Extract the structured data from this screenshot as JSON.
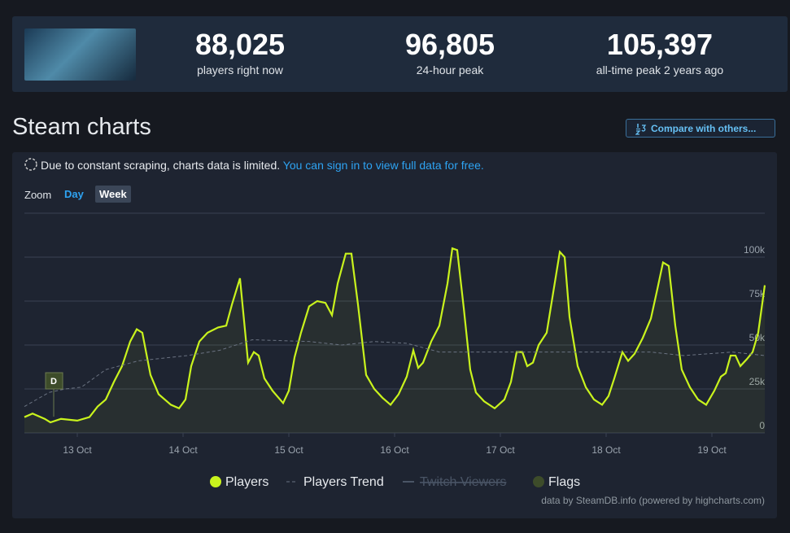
{
  "stats": [
    {
      "value": "88,025",
      "label": "players right now"
    },
    {
      "value": "96,805",
      "label": "24-hour peak"
    },
    {
      "value": "105,397",
      "label": "all-time peak 2 years ago"
    }
  ],
  "title": "Steam charts",
  "compare_button": "Compare with others...",
  "notice": {
    "text": "Due to constant scraping, charts data is limited.",
    "link": "You can sign in to view full data for free."
  },
  "zoom": {
    "label": "Zoom",
    "options": [
      "Day",
      "Week"
    ],
    "active": "Week"
  },
  "chart_data": {
    "type": "line",
    "ylim": [
      0,
      125000
    ],
    "yticks": [
      0,
      {
        "value": 25000,
        "label": "25k"
      },
      {
        "value": 50000,
        "label": "50k"
      },
      {
        "value": 75000,
        "label": "75k"
      },
      {
        "value": 100000,
        "label": "100k"
      }
    ],
    "xlim": [
      12.5,
      19.5
    ],
    "xticks": [
      {
        "value": 13,
        "label": "13 Oct"
      },
      {
        "value": 14,
        "label": "14 Oct"
      },
      {
        "value": 15,
        "label": "15 Oct"
      },
      {
        "value": 16,
        "label": "16 Oct"
      },
      {
        "value": 17,
        "label": "17 Oct"
      },
      {
        "value": 18,
        "label": "18 Oct"
      },
      {
        "value": 19,
        "label": "19 Oct"
      }
    ],
    "grid": true,
    "series": [
      {
        "name": "Players",
        "color": "#c9f31d",
        "x": [
          12.5,
          12.577,
          12.692,
          12.746,
          12.846,
          13.0,
          13.115,
          13.192,
          13.269,
          13.346,
          13.423,
          13.5,
          13.562,
          13.615,
          13.692,
          13.769,
          13.885,
          13.962,
          14.023,
          14.077,
          14.154,
          14.231,
          14.331,
          14.408,
          14.462,
          14.538,
          14.615,
          14.669,
          14.715,
          14.769,
          14.846,
          14.946,
          15.0,
          15.054,
          15.115,
          15.192,
          15.269,
          15.346,
          15.408,
          15.462,
          15.538,
          15.592,
          15.654,
          15.731,
          15.808,
          15.885,
          15.962,
          16.038,
          16.115,
          16.177,
          16.223,
          16.269,
          16.346,
          16.423,
          16.5,
          16.546,
          16.592,
          16.654,
          16.715,
          16.769,
          16.846,
          16.946,
          17.038,
          17.1,
          17.154,
          17.208,
          17.254,
          17.308,
          17.362,
          17.438,
          17.5,
          17.562,
          17.608,
          17.654,
          17.731,
          17.808,
          17.885,
          17.962,
          18.023,
          18.077,
          18.154,
          18.208,
          18.269,
          18.346,
          18.423,
          18.485,
          18.538,
          18.592,
          18.654,
          18.715,
          18.792,
          18.869,
          18.946,
          19.023,
          19.085,
          19.131,
          19.177,
          19.223,
          19.269,
          19.331,
          19.385,
          19.438,
          19.5
        ],
        "values": [
          9000,
          11000,
          8000,
          6000,
          8000,
          7000,
          9000,
          15000,
          19000,
          29000,
          38000,
          52000,
          59000,
          57000,
          33000,
          22000,
          16000,
          14000,
          19000,
          38000,
          52000,
          57000,
          60000,
          61000,
          73000,
          88000,
          40000,
          46000,
          44000,
          31000,
          24000,
          17000,
          24000,
          43000,
          57000,
          72000,
          75000,
          74000,
          67000,
          85000,
          102000,
          102000,
          73000,
          33000,
          25000,
          20000,
          16000,
          22000,
          32000,
          47000,
          37000,
          40000,
          52000,
          61000,
          85000,
          105000,
          104000,
          71000,
          36000,
          23000,
          18000,
          14000,
          19000,
          29000,
          46000,
          46000,
          38000,
          40000,
          50000,
          57000,
          80000,
          103000,
          100000,
          66000,
          38000,
          26000,
          19000,
          16000,
          21000,
          31000,
          46000,
          41000,
          45000,
          54000,
          65000,
          82000,
          97000,
          95000,
          61000,
          36000,
          26000,
          19000,
          16000,
          24000,
          32000,
          34000,
          44000,
          44000,
          38000,
          42000,
          46000,
          57000,
          84000
        ]
      },
      {
        "name": "Players Trend",
        "color": "#6b7382",
        "dashed": true,
        "x": [
          12.5,
          12.731,
          12.885,
          13.038,
          13.269,
          13.577,
          14.038,
          14.346,
          14.654,
          15.192,
          15.5,
          15.808,
          16.115,
          16.423,
          16.885,
          17.654,
          18.423,
          18.731,
          19.192,
          19.5
        ],
        "values": [
          15000,
          23000,
          25000,
          26000,
          36000,
          41000,
          44000,
          47000,
          53000,
          52000,
          50000,
          52000,
          51000,
          46000,
          46000,
          46000,
          46000,
          44000,
          46000,
          44000
        ]
      },
      {
        "name": "Twitch Viewers",
        "color": "#4a5566",
        "visible": false
      },
      {
        "name": "Flags",
        "color": "#3d4c2a",
        "type": "flags",
        "x": [
          12.777
        ],
        "labels": [
          "D"
        ]
      }
    ],
    "credit": "data by SteamDB.info (powered by highcharts.com)"
  }
}
